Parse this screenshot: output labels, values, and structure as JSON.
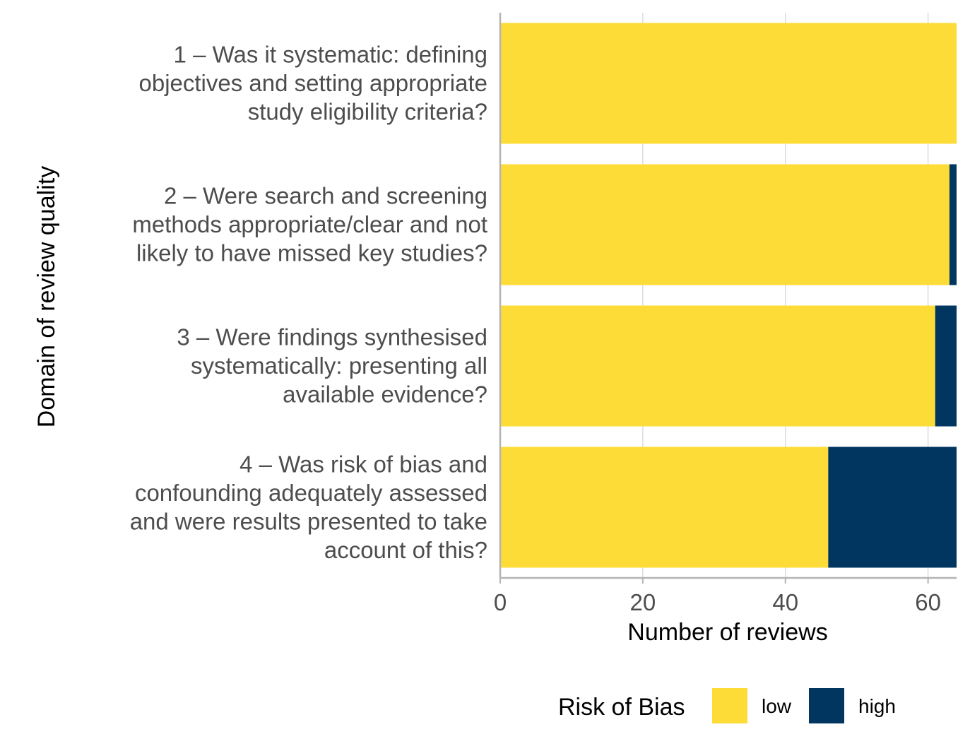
{
  "chart_data": {
    "type": "bar",
    "orientation": "horizontal",
    "stacked": true,
    "categories": [
      [
        "1 – Was it systematic: defining",
        "objectives and setting appropriate",
        "study eligibility criteria?"
      ],
      [
        "2 – Were search and screening",
        "methods appropriate/clear and not",
        "likely to have missed key studies?"
      ],
      [
        "3 – Were findings synthesised",
        "systematically: presenting all",
        "available evidence?"
      ],
      [
        "4 – Was risk of bias and",
        "confounding adequately assessed",
        "and were results presented to take",
        "account of this?"
      ]
    ],
    "series": [
      {
        "name": "low",
        "color": "#FDDC37",
        "values": [
          64,
          63,
          61,
          46
        ]
      },
      {
        "name": "high",
        "color": "#003660",
        "values": [
          0,
          1,
          3,
          18
        ]
      }
    ],
    "xlabel": "Number of reviews",
    "ylabel": "Domain of review quality",
    "xlim": [
      0,
      64
    ],
    "xticks": [
      0,
      20,
      40,
      60
    ],
    "grid": "vertical",
    "legend": {
      "title": "Risk of Bias",
      "position": "bottom"
    }
  }
}
